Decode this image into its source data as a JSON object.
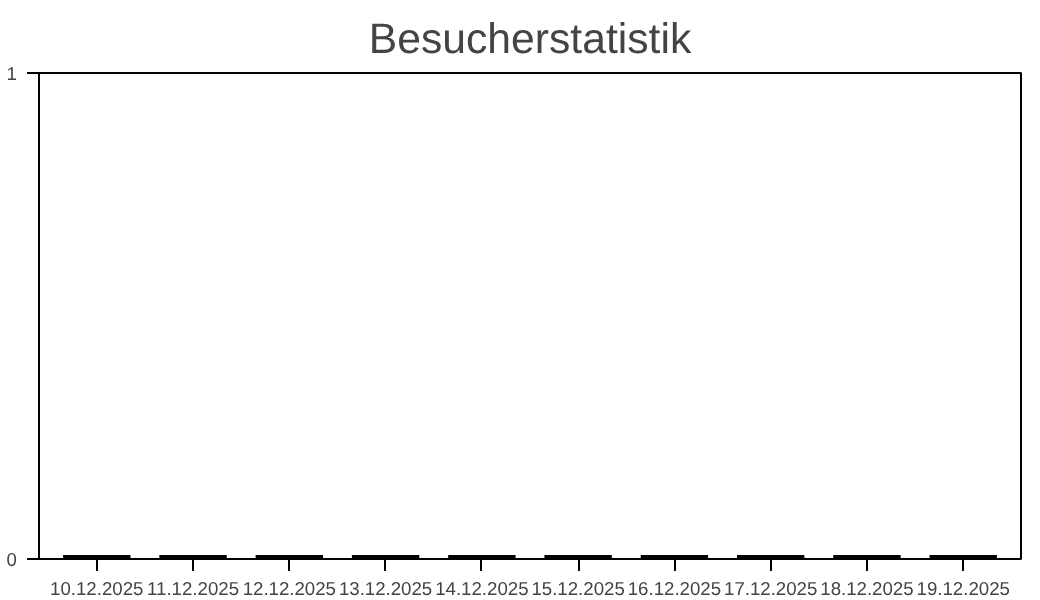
{
  "chart_data": {
    "type": "bar",
    "title": "Besucherstatistik",
    "categories": [
      "10.12.2025",
      "11.12.2025",
      "12.12.2025",
      "13.12.2025",
      "14.12.2025",
      "15.12.2025",
      "16.12.2025",
      "17.12.2025",
      "18.12.2025",
      "19.12.2025"
    ],
    "values": [
      0,
      0,
      0,
      0,
      0,
      0,
      0,
      0,
      0,
      0
    ],
    "color": "#000000",
    "ylim": [
      0,
      1
    ],
    "yticks": [
      0,
      1
    ],
    "grid": false
  }
}
